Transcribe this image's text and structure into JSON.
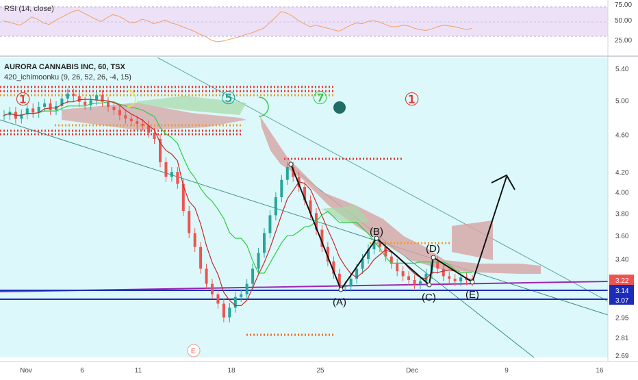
{
  "rsi_panel": {
    "label": "RSI (14, close)",
    "scale_labels": [
      "75.00",
      "50.00",
      "25.00"
    ],
    "band_color": "#ede1f7",
    "line_color": "#f0a060",
    "series": [
      58,
      56,
      54,
      52,
      57,
      63,
      60,
      55,
      53,
      58,
      62,
      66,
      70,
      72,
      68,
      64,
      60,
      57,
      62,
      66,
      64,
      60,
      55,
      56,
      60,
      58,
      54,
      56,
      59,
      55,
      53,
      50,
      47,
      44,
      40,
      37,
      32,
      30,
      31,
      33,
      35,
      37,
      40,
      42,
      45,
      48,
      55,
      62,
      70,
      68,
      64,
      58,
      54,
      50,
      52,
      50,
      48,
      46,
      44,
      48,
      52,
      55,
      54,
      57,
      58,
      56,
      53,
      50,
      50,
      52,
      51,
      48,
      46,
      45,
      47,
      50,
      52,
      51,
      50,
      48,
      46,
      48
    ]
  },
  "main_panel": {
    "title": "AURORA CANNABIS INC, 60, TSX",
    "indicator": "420_ichimoonku (9, 26, 52, 26, -4, 15)",
    "bg_color": "#dcf8fa",
    "price_labels": [
      "5.40",
      "5.00",
      "4.60",
      "4.20",
      "4.00",
      "3.80",
      "3.60",
      "3.40",
      "2.95",
      "2.81",
      "2.69"
    ],
    "price_markers": [
      {
        "label": "3.22",
        "color": "#ef5350"
      },
      {
        "label": "3.14",
        "color": "#1c2bb8"
      },
      {
        "label": "3.07",
        "color": "#1c2bb8"
      }
    ],
    "glyphs": {
      "one": "①",
      "five": "⑤",
      "seven": "⑦",
      "moon": "crescent-moon-icon",
      "dark_dot": "new-moon-icon",
      "event_badge": "E"
    },
    "glyph_colors": {
      "one": "#e0302a",
      "five": "#1a9c8f",
      "seven": "#2ecc40",
      "moon": "#ef9a2a",
      "dark_dot": "#1f6d64"
    }
  },
  "time_axis": {
    "labels": [
      "Nov",
      "6",
      "11",
      "18",
      "25",
      "Dec",
      "9",
      "16"
    ]
  },
  "chart_data": {
    "type": "candlestick",
    "title": "AURORA CANNABIS INC, 60, TSX",
    "xlabel": "",
    "ylabel": "",
    "x_ticks": [
      "Nov",
      "6",
      "11",
      "18",
      "25",
      "Dec",
      "9",
      "16"
    ],
    "ylim": [
      2.69,
      5.4
    ],
    "log_scale": true,
    "candles_close": [
      4.82,
      4.86,
      4.78,
      4.83,
      4.9,
      4.85,
      4.92,
      4.96,
      4.88,
      4.93,
      5.02,
      5.08,
      5.05,
      4.98,
      4.94,
      5.0,
      5.06,
      4.98,
      4.92,
      4.88,
      4.82,
      4.78,
      4.75,
      4.72,
      4.7,
      4.62,
      4.55,
      4.3,
      4.15,
      4.2,
      4.08,
      3.82,
      3.62,
      3.5,
      3.32,
      3.2,
      3.12,
      3.05,
      2.95,
      3.02,
      3.1,
      3.12,
      3.2,
      3.32,
      3.45,
      3.62,
      3.78,
      3.95,
      4.12,
      4.25,
      4.15,
      4.05,
      3.92,
      3.8,
      3.65,
      3.5,
      3.38,
      3.28,
      3.18,
      3.18,
      3.24,
      3.32,
      3.4,
      3.48,
      3.55,
      3.5,
      3.42,
      3.36,
      3.3,
      3.26,
      3.23,
      3.2,
      3.22,
      3.28,
      3.38,
      3.32,
      3.26,
      3.24,
      3.22,
      3.25,
      3.23,
      3.22
    ],
    "annotations": [
      {
        "label": "(A)",
        "value": 3.17
      },
      {
        "label": "(B)",
        "value": 3.55
      },
      {
        "label": "(C)",
        "value": 3.19
      },
      {
        "label": "(D)",
        "value": 3.38
      },
      {
        "label": "(E)",
        "value": 3.19
      }
    ],
    "projection_target": 4.15,
    "horizontal_levels": [
      3.14,
      3.07
    ],
    "rsi_label": "RSI (14, close)",
    "rsi_levels": [
      75,
      50,
      25
    ]
  }
}
